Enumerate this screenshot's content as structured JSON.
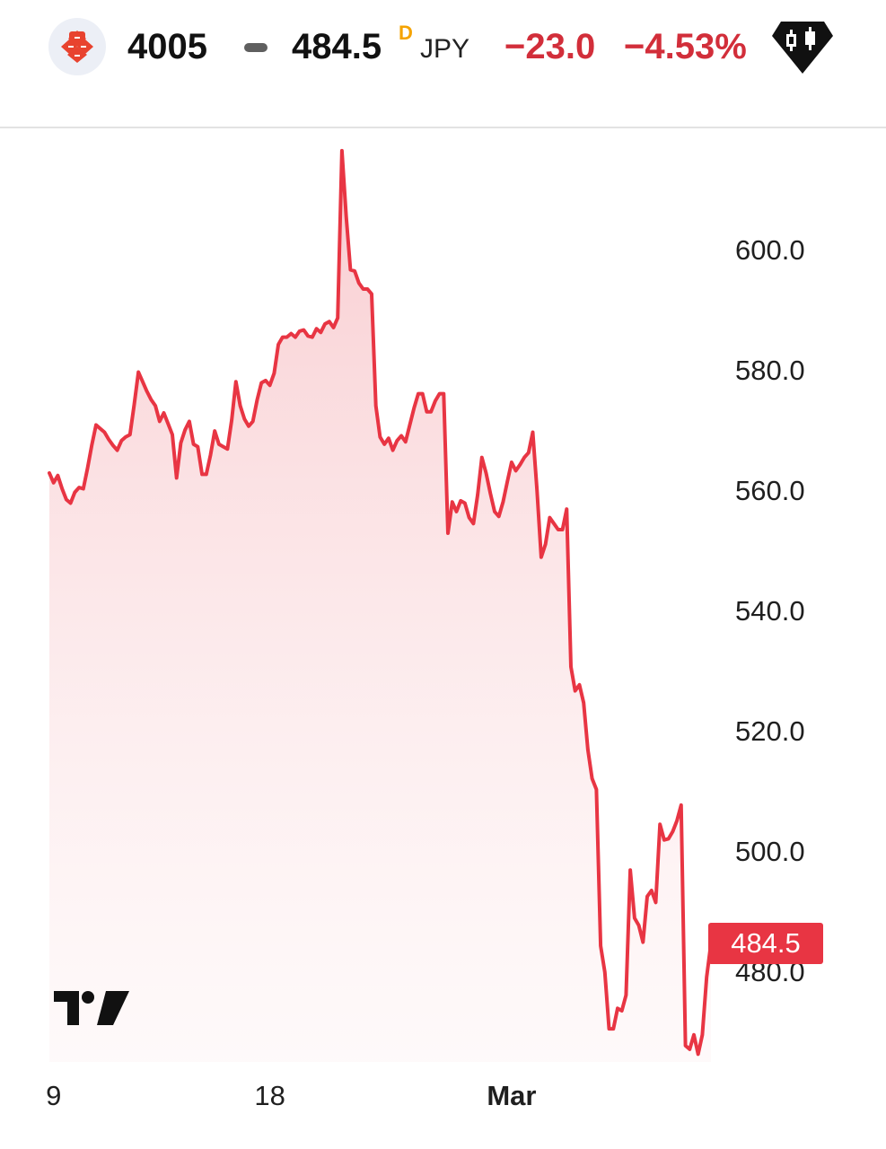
{
  "header": {
    "symbol": "4005",
    "price": "484.5",
    "price_flag": "D",
    "currency": "JPY",
    "change": "−23.0",
    "change_pct": "−4.53%",
    "logo_icon": "company-logo-icon",
    "chart_type_icon": "candlestick-icon"
  },
  "colors": {
    "line": "#e83543",
    "fill_top": "#f8c9cd",
    "negative": "#d22e3a",
    "flag": "#f5a300"
  },
  "last_price_label": "484.5",
  "chart_data": {
    "type": "area",
    "title": "",
    "xlabel": "",
    "ylabel": "",
    "y_ticks": [
      "600.0",
      "580.0",
      "560.0",
      "540.0",
      "520.0",
      "500.0",
      "480.0"
    ],
    "x_ticks": [
      {
        "label": "9",
        "index": 1,
        "bold": false
      },
      {
        "label": "18",
        "index": 52,
        "bold": false
      },
      {
        "label": "Mar",
        "index": 109,
        "bold": true
      }
    ],
    "ylim": [
      465.5,
      622
    ],
    "x_count": 153,
    "grid": false,
    "legend": "none",
    "series": [
      {
        "values": [
          562.8,
          561.2,
          562.4,
          560.2,
          558.4,
          557.8,
          559.6,
          560.4,
          560.2,
          563.6,
          567.4,
          570.8,
          570.2,
          569.6,
          568.4,
          567.4,
          566.6,
          568.2,
          568.8,
          569.2,
          574.2,
          579.6,
          578.0,
          576.4,
          575.0,
          574.0,
          571.4,
          572.8,
          571.0,
          569.2,
          562.0,
          567.8,
          570.0,
          571.4,
          567.6,
          567.2,
          562.6,
          562.6,
          565.8,
          569.8,
          567.6,
          567.2,
          566.8,
          571.6,
          578.0,
          574.0,
          571.8,
          570.6,
          571.4,
          575.0,
          577.8,
          578.2,
          577.4,
          579.4,
          584.2,
          585.4,
          585.4,
          586.0,
          585.4,
          586.4,
          586.6,
          585.6,
          585.4,
          586.8,
          586.2,
          587.6,
          588.0,
          587.0,
          588.6,
          616.4,
          605.4,
          596.6,
          596.4,
          594.4,
          593.4,
          593.4,
          592.6,
          574.0,
          568.8,
          567.6,
          568.6,
          566.6,
          568.2,
          569.0,
          568.0,
          570.8,
          573.6,
          576.0,
          576.0,
          573.0,
          573.0,
          574.8,
          576.0,
          576.0,
          552.8,
          558.0,
          556.4,
          558.2,
          557.8,
          555.4,
          554.4,
          559.2,
          565.4,
          562.8,
          559.4,
          556.4,
          555.6,
          558.0,
          561.4,
          564.6,
          563.2,
          564.2,
          565.4,
          566.2,
          569.6,
          560.0,
          548.8,
          551.0,
          555.4,
          554.4,
          553.4,
          553.4,
          556.8,
          530.6,
          526.6,
          527.6,
          524.6,
          516.8,
          512.0,
          510.2,
          484.2,
          479.8,
          470.4,
          470.4,
          473.8,
          473.4,
          476.0,
          496.8,
          488.8,
          487.6,
          484.8,
          492.4,
          493.4,
          491.4,
          504.4,
          501.8,
          502.0,
          503.2,
          505.0,
          507.6,
          467.6,
          467.0,
          469.4,
          466.2,
          469.4,
          479.0,
          484.5
        ]
      }
    ]
  }
}
